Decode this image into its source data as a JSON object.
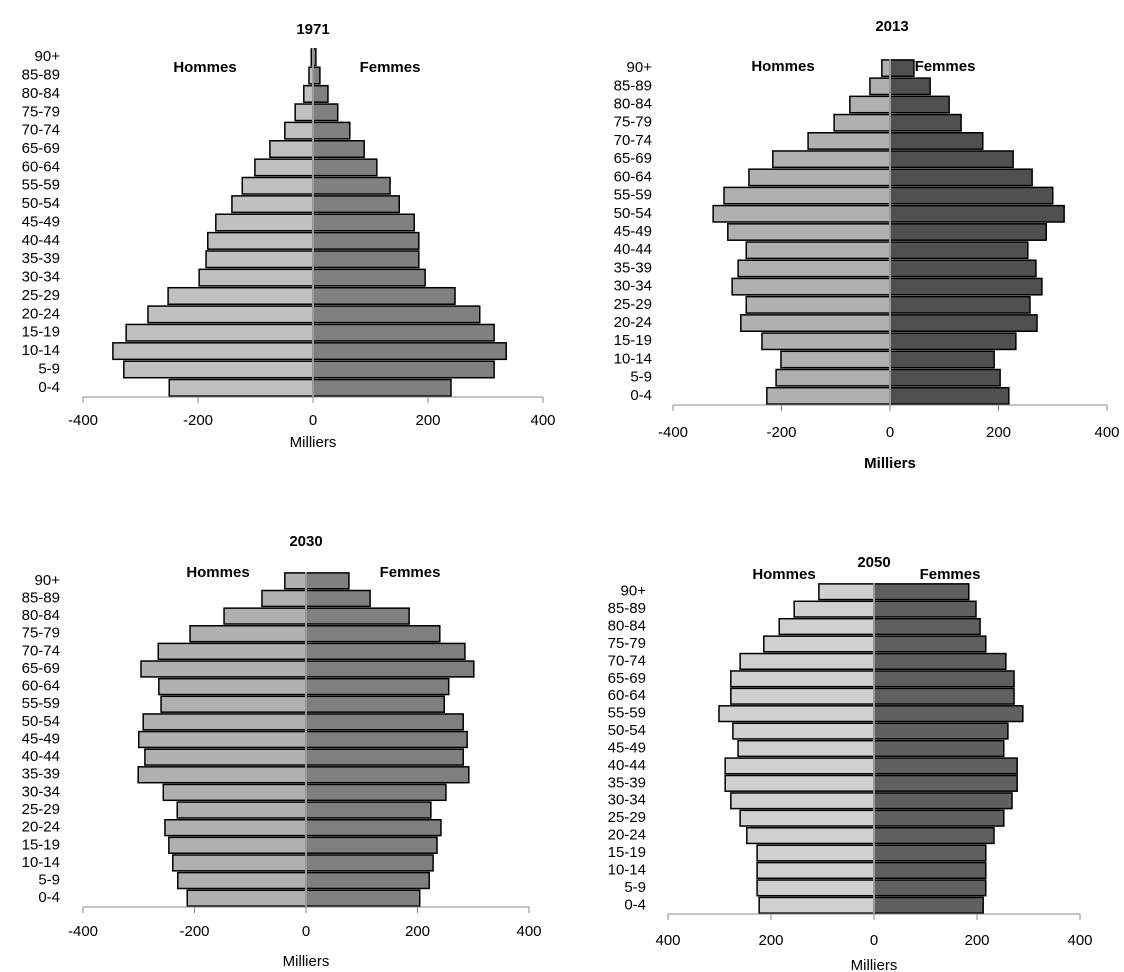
{
  "chart_data": [
    {
      "type": "pyramid",
      "title": "1971",
      "x_label": "Milliers",
      "categories": [
        "0-4",
        "5-9",
        "10-14",
        "15-19",
        "20-24",
        "25-29",
        "30-34",
        "35-39",
        "40-44",
        "45-49",
        "50-54",
        "55-59",
        "60-64",
        "65-69",
        "70-74",
        "75-79",
        "80-84",
        "85-89",
        "90+"
      ],
      "series": [
        {
          "name": "Hommes",
          "color": "#c0c0c0",
          "values": [
            -250,
            -329,
            -348,
            -325,
            -287,
            -252,
            -198,
            -186,
            -183,
            -169,
            -141,
            -123,
            -101,
            -75,
            -49,
            -31,
            -16,
            -7,
            -3
          ]
        },
        {
          "name": "Femmes",
          "color": "#808080",
          "values": [
            240,
            315,
            336,
            315,
            290,
            247,
            195,
            184,
            184,
            176,
            150,
            134,
            111,
            89,
            64,
            43,
            26,
            12,
            5
          ]
        }
      ],
      "xlim": [
        -400,
        400
      ],
      "xticks": [
        -400,
        -200,
        0,
        200,
        400
      ]
    },
    {
      "type": "pyramid",
      "title": "2013",
      "x_label": "Milliers",
      "categories": [
        "0-4",
        "5-9",
        "10-14",
        "15-19",
        "20-24",
        "25-29",
        "30-34",
        "35-39",
        "40-44",
        "45-49",
        "50-54",
        "55-59",
        "60-64",
        "65-69",
        "70-74",
        "75-79",
        "80-84",
        "85-89",
        "90+"
      ],
      "series": [
        {
          "name": "Hommes",
          "color": "#b0b0b0",
          "values": [
            -227,
            -210,
            -201,
            -236,
            -275,
            -265,
            -291,
            -280,
            -265,
            -299,
            -326,
            -306,
            -260,
            -216,
            -151,
            -103,
            -74,
            -37,
            -15
          ]
        },
        {
          "name": "Femmes",
          "color": "#505050",
          "values": [
            219,
            203,
            192,
            232,
            271,
            258,
            280,
            269,
            254,
            288,
            321,
            300,
            262,
            227,
            171,
            131,
            109,
            74,
            44
          ]
        }
      ],
      "xlim": [
        -400,
        400
      ],
      "xticks": [
        -400,
        -200,
        0,
        200,
        400
      ]
    },
    {
      "type": "pyramid",
      "title": "2030",
      "x_label": "Milliers",
      "categories": [
        "0-4",
        "5-9",
        "10-14",
        "15-19",
        "20-24",
        "25-29",
        "30-34",
        "35-39",
        "40-44",
        "45-49",
        "50-54",
        "55-59",
        "60-64",
        "65-69",
        "70-74",
        "75-79",
        "80-84",
        "85-89",
        "90+"
      ],
      "series": [
        {
          "name": "Hommes",
          "color": "#b0b0b0",
          "values": [
            -213,
            -230,
            -239,
            -246,
            -253,
            -231,
            -256,
            -301,
            -289,
            -300,
            -292,
            -260,
            -264,
            -296,
            -265,
            -208,
            -147,
            -79,
            -38
          ]
        },
        {
          "name": "Femmes",
          "color": "#7f7f7f",
          "values": [
            204,
            221,
            228,
            235,
            242,
            224,
            251,
            292,
            282,
            289,
            282,
            248,
            256,
            301,
            285,
            240,
            185,
            115,
            77
          ]
        }
      ],
      "xlim": [
        -400,
        400
      ],
      "xticks": [
        -400,
        -200,
        0,
        200,
        400
      ]
    },
    {
      "type": "pyramid",
      "title": "2050",
      "x_label": "Milliers",
      "categories": [
        "0-4",
        "5-9",
        "10-14",
        "15-19",
        "20-24",
        "25-29",
        "30-34",
        "35-39",
        "40-44",
        "45-49",
        "50-54",
        "55-59",
        "60-64",
        "65-69",
        "70-74",
        "75-79",
        "80-84",
        "85-89",
        "90+"
      ],
      "series": [
        {
          "name": "Hommes",
          "color": "#d0d0d0",
          "values": [
            -223,
            -227,
            -227,
            -227,
            -247,
            -260,
            -278,
            -289,
            -289,
            -264,
            -274,
            -301,
            -278,
            -278,
            -260,
            -214,
            -184,
            -155,
            -107
          ]
        },
        {
          "name": "Femmes",
          "color": "#606060",
          "values": [
            212,
            217,
            217,
            217,
            233,
            252,
            268,
            278,
            278,
            252,
            260,
            289,
            272,
            272,
            256,
            217,
            206,
            198,
            184
          ]
        }
      ],
      "xlim": [
        -400,
        400
      ],
      "xticks": [
        {
          "value": -400,
          "label": "400"
        },
        {
          "value": -200,
          "label": "200"
        },
        0,
        200,
        400
      ]
    }
  ]
}
